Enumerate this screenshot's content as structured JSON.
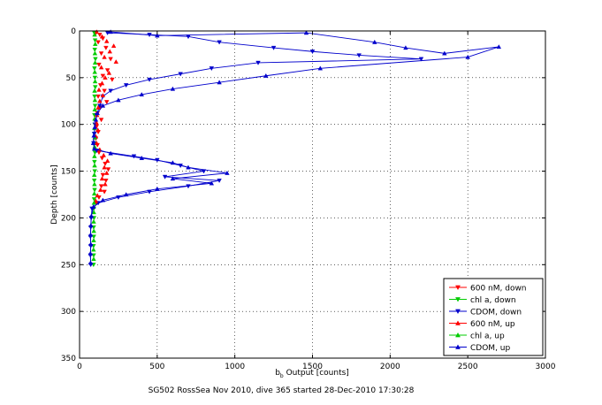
{
  "chart_data": {
    "type": "scatter",
    "title": "",
    "xlabel_main": "b",
    "xlabel_sub": "b",
    "xlabel_rest": " Output [counts]",
    "ylabel": "Depth [counts]",
    "caption": "SG502 RossSea Nov 2010, dive 365 started 28-Dec-2010 17:30:28",
    "xlim": [
      0,
      3000
    ],
    "ylim": [
      0,
      350
    ],
    "y_reversed": true,
    "grid": true,
    "legend_position": "bottom-right",
    "xticks": [
      "0",
      "500",
      "1000",
      "1500",
      "2000",
      "2500",
      "3000"
    ],
    "yticks": [
      "0",
      "50",
      "100",
      "150",
      "200",
      "250",
      "300",
      "350"
    ],
    "series": [
      {
        "name": "600 nM, down",
        "color": "#ff0000",
        "marker": "triangle-down",
        "line": false,
        "points": [
          [
            105,
            2
          ],
          [
            130,
            4
          ],
          [
            150,
            8
          ],
          [
            120,
            12
          ],
          [
            170,
            18
          ],
          [
            140,
            24
          ],
          [
            200,
            30
          ],
          [
            125,
            36
          ],
          [
            180,
            42
          ],
          [
            150,
            48
          ],
          [
            210,
            52
          ],
          [
            135,
            58
          ],
          [
            160,
            64
          ],
          [
            120,
            70
          ],
          [
            175,
            76
          ],
          [
            130,
            82
          ],
          [
            115,
            88
          ],
          [
            140,
            95
          ],
          [
            110,
            102
          ],
          [
            120,
            108
          ],
          [
            105,
            115
          ],
          [
            115,
            122
          ],
          [
            125,
            130
          ],
          [
            145,
            136
          ],
          [
            165,
            142
          ],
          [
            185,
            148
          ],
          [
            150,
            154
          ],
          [
            170,
            160
          ],
          [
            140,
            166
          ],
          [
            160,
            172
          ],
          [
            125,
            178
          ],
          [
            110,
            184
          ]
        ]
      },
      {
        "name": "chl a, down",
        "color": "#00cc00",
        "marker": "triangle-down",
        "line": false,
        "points": [
          [
            95,
            2
          ],
          [
            100,
            10
          ],
          [
            98,
            20
          ],
          [
            102,
            30
          ],
          [
            96,
            40
          ],
          [
            99,
            50
          ],
          [
            101,
            60
          ],
          [
            97,
            70
          ],
          [
            100,
            80
          ],
          [
            96,
            90
          ],
          [
            98,
            100
          ],
          [
            95,
            110
          ],
          [
            97,
            120
          ],
          [
            99,
            130
          ],
          [
            96,
            140
          ],
          [
            98,
            150
          ],
          [
            95,
            160
          ],
          [
            97,
            170
          ],
          [
            94,
            180
          ],
          [
            92,
            190
          ],
          [
            93,
            200
          ],
          [
            91,
            210
          ],
          [
            92,
            220
          ],
          [
            90,
            230
          ],
          [
            91,
            240
          ],
          [
            90,
            250
          ]
        ]
      },
      {
        "name": "CDOM, down",
        "color": "#0000cc",
        "marker": "triangle-down",
        "line": true,
        "points": [
          [
            180,
            2
          ],
          [
            450,
            4
          ],
          [
            700,
            6
          ],
          [
            900,
            12
          ],
          [
            1250,
            18
          ],
          [
            1500,
            22
          ],
          [
            1800,
            26
          ],
          [
            2200,
            30
          ],
          [
            1150,
            34
          ],
          [
            850,
            40
          ],
          [
            650,
            46
          ],
          [
            450,
            52
          ],
          [
            300,
            58
          ],
          [
            200,
            64
          ],
          [
            150,
            70
          ],
          [
            130,
            80
          ],
          [
            110,
            90
          ],
          [
            100,
            100
          ],
          [
            95,
            110
          ],
          [
            90,
            120
          ],
          [
            110,
            128
          ],
          [
            350,
            134
          ],
          [
            500,
            138
          ],
          [
            650,
            144
          ],
          [
            800,
            150
          ],
          [
            550,
            156
          ],
          [
            900,
            160
          ],
          [
            700,
            166
          ],
          [
            450,
            172
          ],
          [
            250,
            178
          ],
          [
            120,
            184
          ],
          [
            80,
            190
          ],
          [
            75,
            200
          ],
          [
            72,
            210
          ],
          [
            70,
            220
          ],
          [
            72,
            230
          ],
          [
            70,
            240
          ],
          [
            72,
            250
          ]
        ]
      },
      {
        "name": "600 nM, up",
        "color": "#ff0000",
        "marker": "triangle-up",
        "line": false,
        "points": [
          [
            110,
            1
          ],
          [
            145,
            6
          ],
          [
            175,
            11
          ],
          [
            220,
            16
          ],
          [
            195,
            22
          ],
          [
            160,
            28
          ],
          [
            235,
            33
          ],
          [
            140,
            39
          ],
          [
            190,
            45
          ],
          [
            165,
            50
          ],
          [
            145,
            56
          ],
          [
            125,
            63
          ],
          [
            150,
            69
          ],
          [
            130,
            75
          ],
          [
            120,
            82
          ],
          [
            112,
            90
          ],
          [
            108,
            98
          ],
          [
            118,
            106
          ],
          [
            105,
            113
          ],
          [
            110,
            120
          ],
          [
            130,
            127
          ],
          [
            155,
            133
          ],
          [
            180,
            139
          ],
          [
            160,
            146
          ],
          [
            175,
            152
          ],
          [
            145,
            158
          ],
          [
            165,
            164
          ],
          [
            135,
            170
          ],
          [
            115,
            176
          ],
          [
            105,
            182
          ]
        ]
      },
      {
        "name": "chl a, up",
        "color": "#00cc00",
        "marker": "triangle-up",
        "line": false,
        "points": [
          [
            97,
            4
          ],
          [
            101,
            14
          ],
          [
            99,
            24
          ],
          [
            100,
            34
          ],
          [
            98,
            44
          ],
          [
            100,
            54
          ],
          [
            97,
            64
          ],
          [
            99,
            74
          ],
          [
            98,
            84
          ],
          [
            97,
            94
          ],
          [
            96,
            104
          ],
          [
            98,
            114
          ],
          [
            97,
            124
          ],
          [
            96,
            134
          ],
          [
            97,
            144
          ],
          [
            95,
            154
          ],
          [
            96,
            164
          ],
          [
            95,
            174
          ],
          [
            93,
            184
          ],
          [
            92,
            194
          ],
          [
            91,
            204
          ],
          [
            92,
            214
          ],
          [
            91,
            224
          ],
          [
            90,
            234
          ],
          [
            91,
            244
          ]
        ]
      },
      {
        "name": "CDOM, up",
        "color": "#0000cc",
        "marker": "triangle-up",
        "line": true,
        "points": [
          [
            200,
            1
          ],
          [
            500,
            5
          ],
          [
            1460,
            2
          ],
          [
            1900,
            12
          ],
          [
            2100,
            18
          ],
          [
            2350,
            24
          ],
          [
            2700,
            17
          ],
          [
            2500,
            28
          ],
          [
            1550,
            40
          ],
          [
            1200,
            48
          ],
          [
            900,
            55
          ],
          [
            600,
            62
          ],
          [
            400,
            68
          ],
          [
            250,
            74
          ],
          [
            150,
            80
          ],
          [
            115,
            88
          ],
          [
            105,
            95
          ],
          [
            98,
            103
          ],
          [
            92,
            112
          ],
          [
            88,
            120
          ],
          [
            95,
            126
          ],
          [
            200,
            131
          ],
          [
            400,
            136
          ],
          [
            600,
            141
          ],
          [
            700,
            146
          ],
          [
            950,
            152
          ],
          [
            600,
            158
          ],
          [
            850,
            163
          ],
          [
            500,
            169
          ],
          [
            300,
            175
          ],
          [
            150,
            181
          ],
          [
            90,
            188
          ],
          [
            76,
            198
          ],
          [
            73,
            208
          ],
          [
            71,
            218
          ],
          [
            72,
            228
          ],
          [
            70,
            238
          ],
          [
            71,
            248
          ]
        ]
      }
    ]
  }
}
